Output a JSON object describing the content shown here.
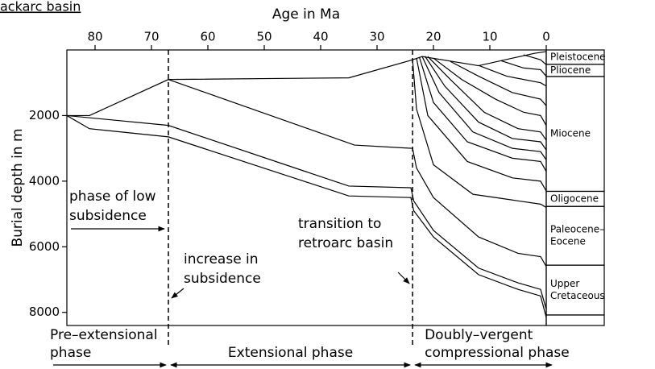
{
  "chart_data": {
    "type": "line",
    "title": "ackarc basin",
    "x_label": "Age in Ma",
    "y_label": "Burial depth in m",
    "xlim": [
      85,
      0
    ],
    "xticks": [
      80,
      70,
      60,
      50,
      40,
      30,
      20,
      10,
      0
    ],
    "ylim": [
      0,
      8400
    ],
    "yticks": [
      2000,
      4000,
      6000,
      8000
    ],
    "color": "#000000",
    "boundaries": [
      67,
      23.7
    ],
    "series": [
      {
        "x": [
          85,
          81,
          67,
          35,
          24,
          23.5,
          20,
          12,
          5,
          1,
          0
        ],
        "values": [
          2000,
          2400,
          2650,
          4450,
          4500,
          4900,
          5700,
          6850,
          7300,
          7500,
          8150
        ]
      },
      {
        "x": [
          85,
          67,
          35,
          24,
          23.5,
          20,
          12,
          5,
          1,
          0
        ],
        "values": [
          2000,
          2300,
          4150,
          4200,
          4600,
          5500,
          6650,
          7100,
          7300,
          7900
        ]
      },
      {
        "x": [
          85,
          81,
          67,
          35,
          23.7,
          22,
          12,
          6,
          2,
          0
        ],
        "values": [
          2000,
          2000,
          900,
          850,
          300,
          200,
          480,
          250,
          100,
          50
        ]
      },
      {
        "x": [
          67,
          34,
          23.7,
          23,
          20,
          12,
          5,
          1,
          0
        ],
        "values": [
          900,
          2900,
          3000,
          3600,
          4500,
          5700,
          6200,
          6300,
          6600
        ]
      },
      {
        "x": [
          23.7,
          23,
          20,
          13,
          5,
          1,
          0
        ],
        "values": [
          300,
          1800,
          3500,
          4400,
          4600,
          4700,
          4800
        ]
      },
      {
        "x": [
          23,
          21,
          14,
          6,
          1,
          0
        ],
        "values": [
          250,
          2000,
          3400,
          3900,
          4000,
          4300
        ]
      },
      {
        "x": [
          22.5,
          20,
          14,
          6,
          1,
          0
        ],
        "values": [
          220,
          1600,
          2800,
          3300,
          3400,
          3700
        ]
      },
      {
        "x": [
          22,
          19,
          13,
          6,
          1,
          0
        ],
        "values": [
          200,
          1300,
          2500,
          3000,
          3100,
          3350
        ]
      },
      {
        "x": [
          21.5,
          18,
          12,
          6,
          1,
          0
        ],
        "values": [
          190,
          1100,
          2200,
          2700,
          2800,
          3050
        ]
      },
      {
        "x": [
          21,
          17,
          11,
          5,
          1,
          0
        ],
        "values": [
          200,
          900,
          1900,
          2400,
          2500,
          2750
        ]
      },
      {
        "x": [
          20,
          15,
          9,
          4,
          1,
          0
        ],
        "values": [
          250,
          900,
          1500,
          1900,
          2000,
          2300
        ]
      },
      {
        "x": [
          17,
          12,
          6,
          1,
          0
        ],
        "values": [
          350,
          800,
          1300,
          1500,
          1700
        ]
      },
      {
        "x": [
          12,
          7,
          1,
          0
        ],
        "values": [
          470,
          800,
          1000,
          1100
        ]
      },
      {
        "x": [
          8,
          4,
          1,
          0
        ],
        "values": [
          330,
          550,
          600,
          800
        ]
      },
      {
        "x": [
          4,
          1,
          0
        ],
        "values": [
          150,
          300,
          450
        ]
      }
    ],
    "strat_column": [
      {
        "label": [
          "Pleistocene"
        ],
        "top": 0,
        "bottom": 440
      },
      {
        "label": [
          "Pliocene"
        ],
        "top": 440,
        "bottom": 810
      },
      {
        "label": [
          "Miocene"
        ],
        "top": 810,
        "bottom": 4310
      },
      {
        "label": [
          "Oligocene"
        ],
        "top": 4310,
        "bottom": 4770
      },
      {
        "label": [
          "Paleocene–",
          "Eocene"
        ],
        "top": 4770,
        "bottom": 6560
      },
      {
        "label": [
          "Upper",
          "Cretaceous"
        ],
        "top": 6560,
        "bottom": 8080
      }
    ],
    "annotations": [
      {
        "lines": [
          "phase of low",
          "subsidence"
        ]
      },
      {
        "lines": [
          "increase in",
          "subsidence"
        ]
      },
      {
        "lines": [
          "transition to",
          "retroarc basin"
        ]
      }
    ],
    "phases": [
      {
        "lines": [
          "Pre–extensional",
          "phase"
        ]
      },
      {
        "lines": [
          "Extensional phase"
        ]
      },
      {
        "lines": [
          "Doubly–vergent",
          "compressional phase"
        ]
      }
    ]
  }
}
